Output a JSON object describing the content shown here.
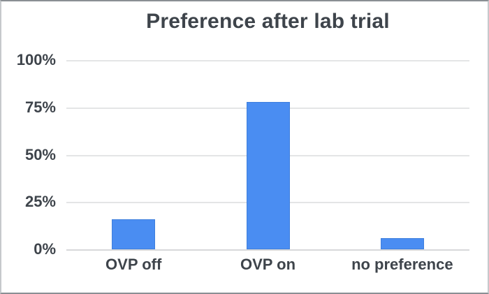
{
  "chart_data": {
    "type": "bar",
    "title": "Preference after lab trial",
    "categories": [
      "OVP off",
      "OVP on",
      "no preference"
    ],
    "values": [
      16,
      78,
      6
    ],
    "value_unit": "%",
    "xlabel": "",
    "ylabel": "",
    "ylim": [
      0,
      100
    ],
    "y_ticks": [
      "0%",
      "25%",
      "50%",
      "75%",
      "100%"
    ],
    "y_tick_values": [
      0,
      25,
      50,
      75,
      100
    ],
    "grid": true,
    "legend": "none",
    "bar_color": "#4a8df2",
    "bar_edge_color": "#3f7fdd",
    "text_color": "#3e444b",
    "gridline_color": "#e4e5e6",
    "frame_border_color": "#8a8f94",
    "background_color": "#ffffff"
  }
}
